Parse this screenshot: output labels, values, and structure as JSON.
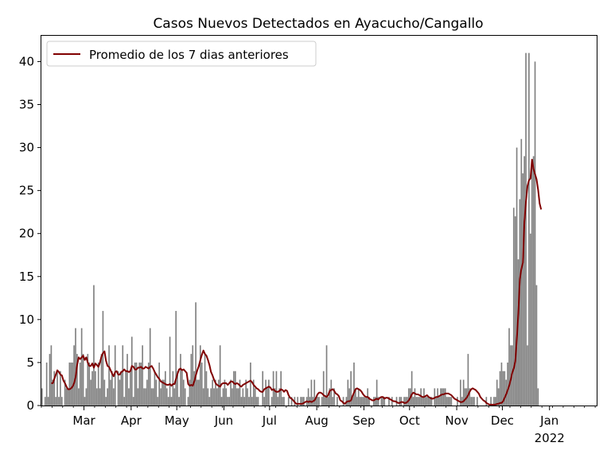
{
  "chart_data": {
    "type": "bar",
    "title": "Casos Nuevos Detectados en Ayacucho/Cangallo",
    "xlabel": "",
    "ylabel": "",
    "x_start": "2021-02-01",
    "x_end": "2022-01-31",
    "ylim": [
      0,
      43
    ],
    "yticks": [
      0,
      5,
      10,
      15,
      20,
      25,
      30,
      35,
      40
    ],
    "xticks": [
      {
        "date": "2021-03-01",
        "label": "Mar"
      },
      {
        "date": "2021-04-01",
        "label": "Apr"
      },
      {
        "date": "2021-05-01",
        "label": "May"
      },
      {
        "date": "2021-06-01",
        "label": "Jun"
      },
      {
        "date": "2021-07-01",
        "label": "Jul"
      },
      {
        "date": "2021-08-01",
        "label": "Aug"
      },
      {
        "date": "2021-09-01",
        "label": "Sep"
      },
      {
        "date": "2021-10-01",
        "label": "Oct"
      },
      {
        "date": "2021-11-01",
        "label": "Nov"
      },
      {
        "date": "2021-12-01",
        "label": "Dec"
      },
      {
        "date": "2022-01-01",
        "label": "Jan",
        "sublabel": "2022"
      }
    ],
    "grid": false,
    "legend": {
      "position": "top-left",
      "entries": [
        "Promedio de los 7 dias anteriores"
      ]
    },
    "colors": {
      "bars": "#808080",
      "line": "#800000"
    },
    "series": [
      {
        "type": "bar",
        "values": [
          2,
          0,
          1,
          5,
          1,
          6,
          7,
          3,
          4,
          1,
          4,
          1,
          4,
          1,
          0,
          3,
          2,
          2,
          5,
          5,
          5,
          7,
          9,
          6,
          2,
          5,
          9,
          6,
          1,
          2,
          6,
          5,
          3,
          4,
          14,
          4,
          2,
          5,
          2,
          6,
          11,
          3,
          1,
          2,
          7,
          3,
          4,
          2,
          7,
          0,
          4,
          3,
          4,
          7,
          1,
          4,
          6,
          2,
          4,
          8,
          1,
          5,
          5,
          2,
          5,
          5,
          7,
          2,
          2,
          3,
          5,
          9,
          2,
          2,
          4,
          3,
          1,
          5,
          2,
          3,
          3,
          4,
          2,
          1,
          8,
          1,
          4,
          2,
          11,
          4,
          1,
          6,
          4,
          3,
          2,
          0,
          1,
          3,
          6,
          7,
          4,
          12,
          3,
          3,
          7,
          5,
          2,
          6,
          4,
          2,
          1,
          2,
          3,
          2,
          3,
          2,
          3,
          7,
          1,
          2,
          3,
          2,
          1,
          1,
          3,
          2,
          4,
          4,
          2,
          2,
          3,
          1,
          2,
          1,
          3,
          2,
          1,
          5,
          1,
          3,
          2,
          1,
          1,
          0,
          0,
          4,
          1,
          3,
          2,
          3,
          0,
          1,
          4,
          2,
          4,
          1,
          2,
          4,
          1,
          1,
          0,
          0,
          1,
          0,
          1,
          0,
          1,
          0,
          1,
          0,
          1,
          1,
          1,
          0,
          1,
          2,
          1,
          3,
          1,
          3,
          1,
          1,
          1,
          0,
          1,
          4,
          1,
          7,
          1,
          2,
          3,
          1,
          2,
          0,
          1,
          0,
          0,
          0,
          1,
          0,
          1,
          3,
          2,
          4,
          1,
          5,
          2,
          1,
          2,
          1,
          1,
          1,
          1,
          1,
          2,
          1,
          0,
          0,
          1,
          1,
          3,
          1,
          0,
          1,
          1,
          1,
          0,
          0,
          1,
          0,
          1,
          0,
          0,
          1,
          0,
          1,
          1,
          0,
          1,
          1,
          1,
          2,
          2,
          4,
          1,
          2,
          1,
          1,
          1,
          2,
          1,
          2,
          1,
          1,
          1,
          1,
          1,
          0,
          2,
          1,
          2,
          1,
          2,
          2,
          2,
          2,
          1,
          1,
          1,
          1,
          0,
          0,
          0,
          1,
          0,
          3,
          1,
          3,
          2,
          2,
          6,
          2,
          1,
          1,
          1,
          0,
          1,
          0,
          0,
          0,
          0,
          0,
          1,
          0,
          0,
          1,
          0,
          1,
          1,
          3,
          2,
          4,
          5,
          4,
          4,
          3,
          5,
          9,
          7,
          7,
          23,
          22,
          30,
          17,
          24,
          31,
          27,
          29,
          41,
          7,
          41,
          20,
          28,
          29,
          40,
          14,
          2
        ]
      },
      {
        "type": "line",
        "name": "Promedio de los 7 dias anteriores",
        "values": [
          null,
          null,
          null,
          null,
          null,
          null,
          2.6,
          2.6,
          3.1,
          3.6,
          4.1,
          3.9,
          3.6,
          3.5,
          2.9,
          2.6,
          2.2,
          1.9,
          1.9,
          2.0,
          2.2,
          2.6,
          3.3,
          4.7,
          5.6,
          5.4,
          5.6,
          5.8,
          5.3,
          5.6,
          5.0,
          4.6,
          4.6,
          4.9,
          4.4,
          4.9,
          4.7,
          4.5,
          5.0,
          5.7,
          6.1,
          6.3,
          5.2,
          4.6,
          4.5,
          4.1,
          3.7,
          3.4,
          3.9,
          4.0,
          3.6,
          3.6,
          3.9,
          4.0,
          4.2,
          4.0,
          4.0,
          3.9,
          4.0,
          4.6,
          4.5,
          4.2,
          4.2,
          4.4,
          4.4,
          4.5,
          4.3,
          4.3,
          4.5,
          4.4,
          4.3,
          4.5,
          4.6,
          4.3,
          3.9,
          3.6,
          3.3,
          3.1,
          2.8,
          2.7,
          2.6,
          2.5,
          2.4,
          2.4,
          2.5,
          2.3,
          2.5,
          2.5,
          3.1,
          3.7,
          4.2,
          4.3,
          4.1,
          4.2,
          4.0,
          3.8,
          2.5,
          2.3,
          2.4,
          2.3,
          2.8,
          3.5,
          4.1,
          4.6,
          5.3,
          5.9,
          6.4,
          6.0,
          5.8,
          5.3,
          4.7,
          3.9,
          3.5,
          3.0,
          2.6,
          2.4,
          2.3,
          2.2,
          2.5,
          2.6,
          2.6,
          2.6,
          2.4,
          2.6,
          2.8,
          2.8,
          2.6,
          2.5,
          2.6,
          2.5,
          2.3,
          2.2,
          2.4,
          2.5,
          2.6,
          2.7,
          2.8,
          2.9,
          2.7,
          2.4,
          2.2,
          2.0,
          1.9,
          1.7,
          1.6,
          1.6,
          1.9,
          2.0,
          2.1,
          2.2,
          2.1,
          1.8,
          1.9,
          1.7,
          1.6,
          1.6,
          1.7,
          1.9,
          1.8,
          1.6,
          1.8,
          1.7,
          1.2,
          0.9,
          0.8,
          0.6,
          0.4,
          0.2,
          0.2,
          0.2,
          0.2,
          0.2,
          0.3,
          0.4,
          0.5,
          0.4,
          0.5,
          0.4,
          0.5,
          0.6,
          0.9,
          1.3,
          1.5,
          1.5,
          1.4,
          1.2,
          1.1,
          1.0,
          1.2,
          1.7,
          1.8,
          1.9,
          1.7,
          1.4,
          1.3,
          1.1,
          0.6,
          0.5,
          0.3,
          0.2,
          0.4,
          0.5,
          0.5,
          0.6,
          1.1,
          1.5,
          1.9,
          2.0,
          1.9,
          1.8,
          1.6,
          1.3,
          1.1,
          1.0,
          1.0,
          0.8,
          0.7,
          0.6,
          0.6,
          0.7,
          0.8,
          0.7,
          0.9,
          1.0,
          1.0,
          0.8,
          0.9,
          0.9,
          0.8,
          0.7,
          0.6,
          0.5,
          0.5,
          0.4,
          0.3,
          0.3,
          0.4,
          0.4,
          0.3,
          0.3,
          0.4,
          0.6,
          0.9,
          1.3,
          1.5,
          1.4,
          1.3,
          1.3,
          1.2,
          1.1,
          1.0,
          1.0,
          1.1,
          1.2,
          1.0,
          0.9,
          0.8,
          0.8,
          0.9,
          1.0,
          1.0,
          1.1,
          1.2,
          1.3,
          1.3,
          1.4,
          1.4,
          1.4,
          1.3,
          1.2,
          1.0,
          0.8,
          0.7,
          0.6,
          0.5,
          0.4,
          0.4,
          0.5,
          0.7,
          0.9,
          1.2,
          1.6,
          1.9,
          2.0,
          1.9,
          1.8,
          1.6,
          1.4,
          1.0,
          0.8,
          0.6,
          0.5,
          0.3,
          0.2,
          0.1,
          0.1,
          0.1,
          0.1,
          0.1,
          0.2,
          0.2,
          0.3,
          0.3,
          0.5,
          0.9,
          1.3,
          1.8,
          2.3,
          3.0,
          3.8,
          4.3,
          5.1,
          7.7,
          10.7,
          14.7,
          15.9,
          16.6,
          21.4,
          23.7,
          25.5,
          26.2,
          26.4,
          28.6,
          27.5,
          26.9,
          26.3,
          25.1,
          23.5,
          22.8
        ]
      }
    ]
  }
}
